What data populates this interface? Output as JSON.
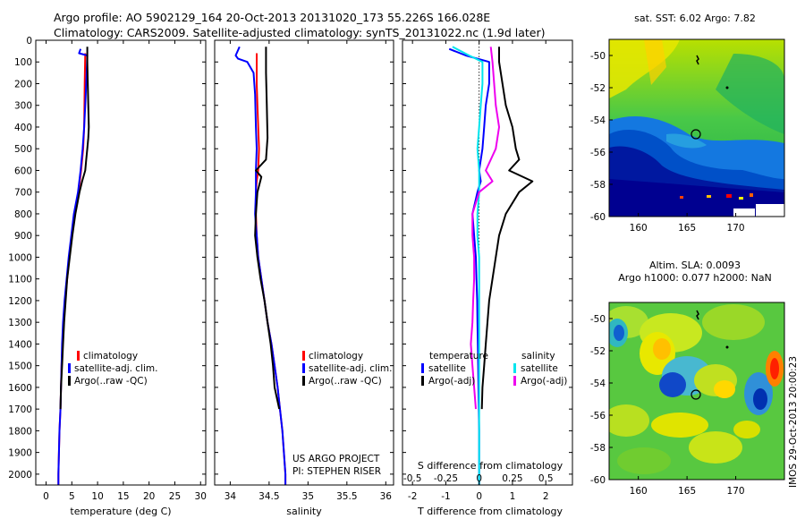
{
  "header": {
    "line1": "Argo profile: AO 5902129_164 20-Oct-2013 20131020_173 55.226S 166.028E",
    "line2": "Climatology: CARS2009. Satellite-adjusted climatology: synTS_20131022.nc (1.9d later)"
  },
  "colors": {
    "climatology": "#ff0000",
    "satellite": "#0000ff",
    "argo": "#000000",
    "satellite_s": "#00e5ee",
    "argo_s": "#ee00ee"
  },
  "chart_data": [
    {
      "type": "line",
      "xlabel": "temperature (deg C)",
      "xlim": [
        -2,
        31
      ],
      "ylim": [
        0,
        2050
      ],
      "xticks": [
        0,
        5,
        10,
        15,
        20,
        25,
        30
      ],
      "yticks": [
        0,
        100,
        200,
        300,
        400,
        500,
        600,
        700,
        800,
        900,
        1000,
        1100,
        1200,
        1300,
        1400,
        1500,
        1600,
        1700,
        1800,
        1900,
        2000
      ],
      "legend": [
        "climatology",
        "satellite-adj. clim.",
        "Argo(..raw -QC)"
      ],
      "series": [
        {
          "name": "climatology",
          "color": "#ff0000",
          "points": [
            [
              7.6,
              60
            ],
            [
              7.5,
              200
            ],
            [
              7.4,
              400
            ],
            [
              7.2,
              500
            ],
            [
              6.8,
              600
            ],
            [
              6.3,
              700
            ],
            [
              5.6,
              800
            ],
            [
              5.0,
              900
            ],
            [
              4.5,
              1000
            ],
            [
              4.1,
              1100
            ],
            [
              3.7,
              1200
            ],
            [
              3.4,
              1300
            ],
            [
              3.2,
              1400
            ],
            [
              3.0,
              1500
            ],
            [
              2.9,
              1600
            ],
            [
              2.8,
              1700
            ],
            [
              2.6,
              1800
            ],
            [
              2.5,
              1900
            ],
            [
              2.4,
              2000
            ],
            [
              2.4,
              2050
            ]
          ]
        },
        {
          "name": "satellite-adj. clim.",
          "color": "#0000ff",
          "points": [
            [
              6.7,
              40
            ],
            [
              6.4,
              60
            ],
            [
              8.0,
              70
            ],
            [
              7.8,
              200
            ],
            [
              7.6,
              300
            ],
            [
              7.4,
              400
            ],
            [
              7.1,
              500
            ],
            [
              6.7,
              600
            ],
            [
              6.2,
              700
            ],
            [
              5.4,
              800
            ],
            [
              4.9,
              900
            ],
            [
              4.4,
              1000
            ],
            [
              4.0,
              1100
            ],
            [
              3.6,
              1200
            ],
            [
              3.3,
              1300
            ],
            [
              3.1,
              1400
            ],
            [
              3.0,
              1500
            ],
            [
              2.9,
              1600
            ],
            [
              2.8,
              1700
            ],
            [
              2.6,
              1800
            ],
            [
              2.5,
              1900
            ],
            [
              2.4,
              2000
            ],
            [
              2.4,
              2050
            ]
          ]
        },
        {
          "name": "Argo(..raw -QC)",
          "color": "#000000",
          "points": [
            [
              8.0,
              30
            ],
            [
              8.0,
              100
            ],
            [
              8.2,
              300
            ],
            [
              8.3,
              400
            ],
            [
              8.2,
              450
            ],
            [
              8.0,
              500
            ],
            [
              7.8,
              550
            ],
            [
              7.6,
              600
            ],
            [
              7.0,
              650
            ],
            [
              6.5,
              700
            ],
            [
              5.7,
              800
            ],
            [
              5.1,
              900
            ],
            [
              4.6,
              1000
            ],
            [
              4.1,
              1100
            ],
            [
              3.8,
              1200
            ],
            [
              3.5,
              1300
            ],
            [
              3.3,
              1400
            ],
            [
              3.1,
              1500
            ],
            [
              2.9,
              1600
            ],
            [
              2.8,
              1700
            ]
          ]
        }
      ]
    },
    {
      "type": "line",
      "xlabel": "salinity",
      "xlim": [
        33.8,
        36.1
      ],
      "ylim": [
        0,
        2050
      ],
      "xticks": [
        34,
        34.5,
        35,
        35.5,
        36
      ],
      "yticks": [
        0,
        100,
        200,
        300,
        400,
        500,
        600,
        700,
        800,
        900,
        1000,
        1100,
        1200,
        1300,
        1400,
        1500,
        1600,
        1700,
        1800,
        1900,
        2000
      ],
      "legend": [
        "climatology",
        "satellite-adj. clim.",
        "Argo(..raw -QC)"
      ],
      "notes": [
        "US ARGO PROJECT",
        "PI: STEPHEN RISER"
      ],
      "series": [
        {
          "name": "climatology",
          "color": "#ff0000",
          "points": [
            [
              34.34,
              60
            ],
            [
              34.34,
              200
            ],
            [
              34.35,
              300
            ],
            [
              34.36,
              400
            ],
            [
              34.37,
              500
            ],
            [
              34.36,
              600
            ],
            [
              34.34,
              650
            ],
            [
              34.33,
              700
            ],
            [
              34.33,
              800
            ],
            [
              34.34,
              900
            ],
            [
              34.36,
              1000
            ],
            [
              34.4,
              1100
            ],
            [
              34.44,
              1200
            ],
            [
              34.48,
              1300
            ],
            [
              34.53,
              1400
            ],
            [
              34.57,
              1500
            ],
            [
              34.61,
              1600
            ],
            [
              34.64,
              1700
            ],
            [
              34.67,
              1800
            ],
            [
              34.69,
              1900
            ],
            [
              34.71,
              2000
            ],
            [
              34.71,
              2050
            ]
          ]
        },
        {
          "name": "satellite-adj. clim.",
          "color": "#0000ff",
          "points": [
            [
              34.12,
              30
            ],
            [
              34.07,
              70
            ],
            [
              34.1,
              85
            ],
            [
              34.22,
              100
            ],
            [
              34.3,
              150
            ],
            [
              34.32,
              250
            ],
            [
              34.33,
              400
            ],
            [
              34.34,
              500
            ],
            [
              34.33,
              600
            ],
            [
              34.33,
              700
            ],
            [
              34.32,
              800
            ],
            [
              34.34,
              900
            ],
            [
              34.36,
              1000
            ],
            [
              34.4,
              1100
            ],
            [
              34.44,
              1200
            ],
            [
              34.48,
              1300
            ],
            [
              34.53,
              1400
            ],
            [
              34.57,
              1500
            ],
            [
              34.61,
              1600
            ],
            [
              34.64,
              1700
            ],
            [
              34.67,
              1800
            ],
            [
              34.69,
              1900
            ],
            [
              34.71,
              2000
            ],
            [
              34.71,
              2050
            ]
          ]
        },
        {
          "name": "Argo(..raw -QC)",
          "color": "#000000",
          "points": [
            [
              34.46,
              30
            ],
            [
              34.46,
              150
            ],
            [
              34.47,
              300
            ],
            [
              34.48,
              450
            ],
            [
              34.46,
              550
            ],
            [
              34.33,
              600
            ],
            [
              34.4,
              630
            ],
            [
              34.35,
              700
            ],
            [
              34.33,
              800
            ],
            [
              34.32,
              900
            ],
            [
              34.35,
              1000
            ],
            [
              34.39,
              1100
            ],
            [
              34.44,
              1200
            ],
            [
              34.48,
              1300
            ],
            [
              34.52,
              1400
            ],
            [
              34.55,
              1500
            ],
            [
              34.57,
              1600
            ],
            [
              34.6,
              1650
            ],
            [
              34.63,
              1700
            ]
          ]
        }
      ]
    },
    {
      "type": "line",
      "xlabel": "T difference from climatology",
      "xlabel2": "S difference from climatology",
      "xlim": [
        -2.3,
        2.8
      ],
      "ylim": [
        0,
        2050
      ],
      "xticks": [
        -2,
        -1,
        0,
        1,
        2
      ],
      "xticks_top": [
        -0.5,
        -0.25,
        0,
        0.25,
        0.5
      ],
      "yticks": [
        0,
        100,
        200,
        300,
        400,
        500,
        600,
        700,
        800,
        900,
        1000,
        1100,
        1200,
        1300,
        1400,
        1500,
        1600,
        1700,
        1800,
        1900,
        2000
      ],
      "legend_temperature": {
        "title": "temperature",
        "items": [
          "satellite",
          "Argo(-adj)"
        ]
      },
      "legend_salinity": {
        "title": "salinity",
        "items": [
          "satellite",
          "Argo(-adj)"
        ]
      },
      "series": [
        {
          "name": "satellite",
          "color": "#0000ff",
          "points": [
            [
              -0.9,
              40
            ],
            [
              -0.4,
              70
            ],
            [
              0.3,
              100
            ],
            [
              0.3,
              200
            ],
            [
              0.2,
              300
            ],
            [
              0.15,
              400
            ],
            [
              0.1,
              500
            ],
            [
              0.0,
              600
            ],
            [
              0.05,
              650
            ],
            [
              -0.05,
              700
            ],
            [
              -0.2,
              800
            ],
            [
              -0.15,
              900
            ],
            [
              -0.1,
              1000
            ],
            [
              -0.08,
              1100
            ],
            [
              -0.06,
              1200
            ],
            [
              -0.05,
              1300
            ],
            [
              -0.04,
              1400
            ],
            [
              -0.03,
              1500
            ],
            [
              -0.02,
              1600
            ],
            [
              -0.01,
              1700
            ],
            [
              0.0,
              1800
            ],
            [
              0.0,
              1900
            ],
            [
              0.0,
              2000
            ],
            [
              0.0,
              2050
            ]
          ]
        },
        {
          "name": "Argo(-adj)",
          "color": "#000000",
          "points": [
            [
              0.6,
              30
            ],
            [
              0.6,
              100
            ],
            [
              0.8,
              300
            ],
            [
              1.0,
              400
            ],
            [
              1.1,
              500
            ],
            [
              1.2,
              550
            ],
            [
              0.9,
              600
            ],
            [
              1.6,
              650
            ],
            [
              1.2,
              700
            ],
            [
              0.8,
              800
            ],
            [
              0.6,
              900
            ],
            [
              0.5,
              1000
            ],
            [
              0.4,
              1100
            ],
            [
              0.3,
              1200
            ],
            [
              0.25,
              1300
            ],
            [
              0.2,
              1400
            ],
            [
              0.15,
              1500
            ],
            [
              0.1,
              1600
            ],
            [
              0.08,
              1700
            ]
          ]
        },
        {
          "name": "satellite",
          "color": "#00e5ee",
          "points": [
            [
              -0.8,
              30
            ],
            [
              -0.3,
              70
            ],
            [
              0.1,
              100
            ],
            [
              0.1,
              200
            ],
            [
              0.05,
              300
            ],
            [
              0.0,
              400
            ],
            [
              -0.05,
              500
            ],
            [
              0.0,
              600
            ],
            [
              0.0,
              700
            ],
            [
              -0.05,
              800
            ],
            [
              -0.05,
              900
            ],
            [
              0.0,
              1000
            ],
            [
              0.0,
              1100
            ],
            [
              0.0,
              1200
            ],
            [
              0.0,
              1300
            ],
            [
              0.0,
              1400
            ],
            [
              0.0,
              1500
            ],
            [
              0.0,
              1600
            ],
            [
              0.0,
              1700
            ],
            [
              0.0,
              1800
            ],
            [
              0.0,
              1900
            ],
            [
              0.0,
              2000
            ],
            [
              0.0,
              2050
            ]
          ]
        },
        {
          "name": "Argo(-adj)",
          "color": "#ee00ee",
          "points": [
            [
              0.35,
              30
            ],
            [
              0.4,
              100
            ],
            [
              0.5,
              300
            ],
            [
              0.6,
              400
            ],
            [
              0.5,
              500
            ],
            [
              0.2,
              600
            ],
            [
              0.4,
              650
            ],
            [
              0.0,
              700
            ],
            [
              -0.2,
              800
            ],
            [
              -0.2,
              900
            ],
            [
              -0.15,
              1000
            ],
            [
              -0.15,
              1100
            ],
            [
              -0.18,
              1200
            ],
            [
              -0.2,
              1300
            ],
            [
              -0.25,
              1400
            ],
            [
              -0.2,
              1500
            ],
            [
              -0.15,
              1600
            ],
            [
              -0.1,
              1700
            ]
          ]
        }
      ]
    },
    {
      "type": "heatmap",
      "title": "sat. SST: 6.02 Argo: 7.82",
      "xlim": [
        157,
        175
      ],
      "ylim": [
        -60,
        -49
      ],
      "xticks": [
        160,
        165,
        170
      ],
      "yticks": [
        -50,
        -52,
        -54,
        -56,
        -58,
        -60
      ],
      "marker": {
        "x": 166.028,
        "y": -55.226
      }
    },
    {
      "type": "heatmap",
      "title": "Altim. SLA: 0.0093",
      "subtitle": "Argo h1000: 0.077 h2000: NaN",
      "xlim": [
        157,
        175
      ],
      "ylim": [
        -60,
        -49
      ],
      "xticks": [
        160,
        165,
        170
      ],
      "yticks": [
        -50,
        -52,
        -54,
        -56,
        -58,
        -60
      ],
      "marker": {
        "x": 166.028,
        "y": -55.226
      }
    }
  ],
  "credit": "IMOS 29-Oct-2013 20:00:23"
}
